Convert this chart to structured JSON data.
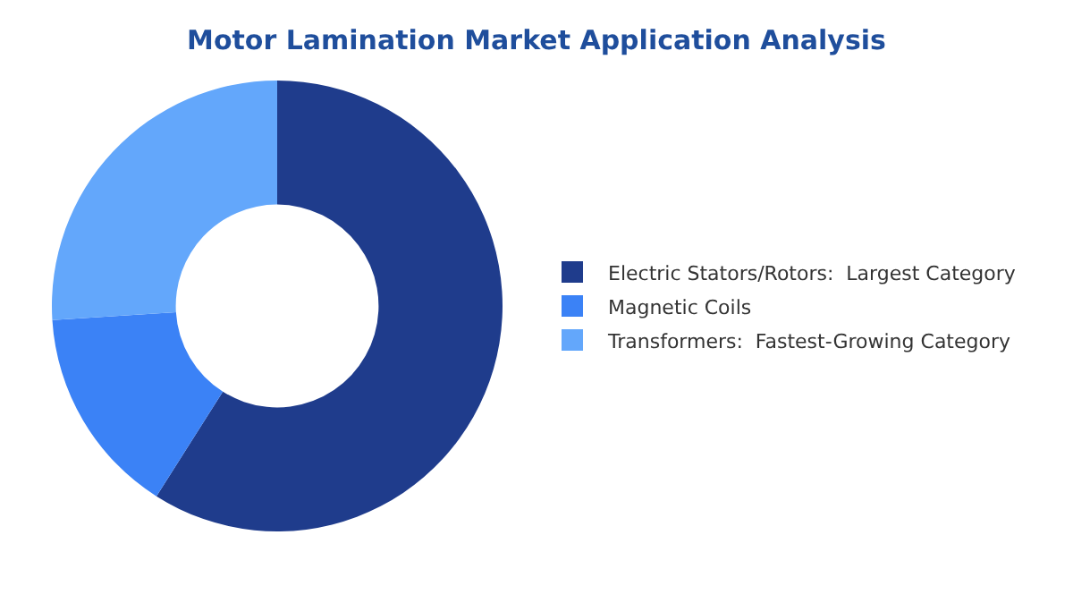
{
  "chart_data": {
    "type": "donut",
    "title": "Motor Lamination Market Application Analysis",
    "categories": [
      "Electric Stators/Rotors:  Largest Category",
      "Magnetic Coils",
      "Transformers:  Fastest-Growing Category"
    ],
    "values": [
      59,
      15,
      26
    ],
    "colors": [
      "#1f3c8c",
      "#3b82f6",
      "#63a7fb"
    ],
    "legend": "right"
  }
}
